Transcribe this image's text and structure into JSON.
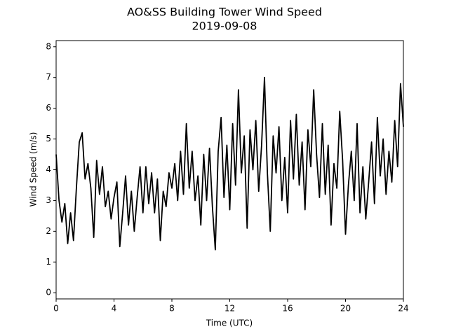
{
  "chart_data": {
    "type": "line",
    "title": "AO&SS Building Tower Wind Speed",
    "subtitle": "2019-09-08",
    "x_label": "Time (UTC)",
    "y_label": "Wind Speed (m/s)",
    "x": [
      0,
      0.2,
      0.4,
      0.6,
      0.8,
      1,
      1.2,
      1.4,
      1.6,
      1.8,
      2,
      2.2,
      2.4,
      2.6,
      2.8,
      3,
      3.2,
      3.4,
      3.6,
      3.8,
      4,
      4.2,
      4.4,
      4.6,
      4.8,
      5,
      5.2,
      5.4,
      5.6,
      5.8,
      6,
      6.2,
      6.4,
      6.6,
      6.8,
      7,
      7.2,
      7.4,
      7.6,
      7.8,
      8,
      8.2,
      8.4,
      8.6,
      8.8,
      9,
      9.2,
      9.4,
      9.6,
      9.8,
      10,
      10.2,
      10.4,
      10.6,
      10.8,
      11,
      11.2,
      11.4,
      11.6,
      11.8,
      12,
      12.2,
      12.4,
      12.6,
      12.8,
      13,
      13.2,
      13.4,
      13.6,
      13.8,
      14,
      14.2,
      14.4,
      14.6,
      14.8,
      15,
      15.2,
      15.4,
      15.6,
      15.8,
      16,
      16.2,
      16.4,
      16.6,
      16.8,
      17,
      17.2,
      17.4,
      17.6,
      17.8,
      18,
      18.2,
      18.4,
      18.6,
      18.8,
      19,
      19.2,
      19.4,
      19.6,
      19.8,
      20,
      20.2,
      20.4,
      20.6,
      20.8,
      21,
      21.2,
      21.4,
      21.6,
      21.8,
      22,
      22.2,
      22.4,
      22.6,
      22.8,
      23,
      23.2,
      23.4,
      23.6,
      23.8,
      24
    ],
    "series": [
      {
        "name": "Wind Speed",
        "color": "#000000",
        "values": [
          4.5,
          3.0,
          2.3,
          2.9,
          1.6,
          2.6,
          1.7,
          3.4,
          4.9,
          5.2,
          3.7,
          4.2,
          3.4,
          1.8,
          4.3,
          3.2,
          4.1,
          2.8,
          3.3,
          2.4,
          3.1,
          3.6,
          1.5,
          2.6,
          3.8,
          2.2,
          3.3,
          2.0,
          3.1,
          4.1,
          2.6,
          4.1,
          2.9,
          3.9,
          2.6,
          3.7,
          1.7,
          3.3,
          2.8,
          3.9,
          3.4,
          4.2,
          3.0,
          4.6,
          3.2,
          5.5,
          3.4,
          4.6,
          3.0,
          3.8,
          2.2,
          4.5,
          3.0,
          4.7,
          2.8,
          1.4,
          4.6,
          5.7,
          3.1,
          4.8,
          2.7,
          5.5,
          3.5,
          6.6,
          3.9,
          5.1,
          2.1,
          5.3,
          4.0,
          5.6,
          3.3,
          4.8,
          7.0,
          3.9,
          2.0,
          5.1,
          3.9,
          5.4,
          3.0,
          4.4,
          2.6,
          5.6,
          3.7,
          5.8,
          3.5,
          4.9,
          2.7,
          5.3,
          4.1,
          6.6,
          4.5,
          3.1,
          5.5,
          3.2,
          4.8,
          2.2,
          4.2,
          3.4,
          5.9,
          4.3,
          1.9,
          3.5,
          4.6,
          3.0,
          5.5,
          2.6,
          4.1,
          2.4,
          3.6,
          4.9,
          2.9,
          5.7,
          3.8,
          5.0,
          3.2,
          4.6,
          3.6,
          5.6,
          4.1,
          6.8,
          5.4
        ]
      }
    ],
    "xlim": [
      0,
      24
    ],
    "xticks": [
      0,
      4,
      8,
      12,
      16,
      20,
      24
    ],
    "ylim": [
      -0.2,
      8.2
    ],
    "yticks": [
      0,
      1,
      2,
      3,
      4,
      5,
      6,
      7,
      8
    ]
  }
}
